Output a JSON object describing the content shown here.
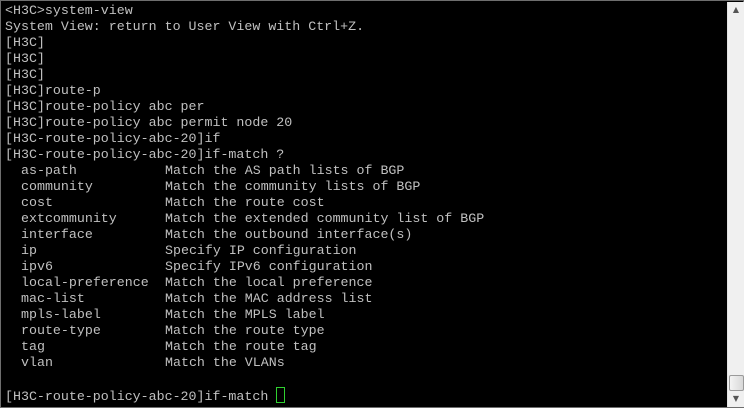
{
  "terminal": {
    "history": [
      "<H3C>system-view",
      "System View: return to User View with Ctrl+Z.",
      "[H3C]",
      "[H3C]",
      "[H3C]",
      "[H3C]route-p",
      "[H3C]route-policy abc per",
      "[H3C]route-policy abc permit node 20",
      "[H3C-route-policy-abc-20]if",
      "[H3C-route-policy-abc-20]if-match ?"
    ],
    "options": [
      {
        "name": "as-path",
        "desc": "Match the AS path lists of BGP"
      },
      {
        "name": "community",
        "desc": "Match the community lists of BGP"
      },
      {
        "name": "cost",
        "desc": "Match the route cost"
      },
      {
        "name": "extcommunity",
        "desc": "Match the extended community list of BGP"
      },
      {
        "name": "interface",
        "desc": "Match the outbound interface(s)"
      },
      {
        "name": "ip",
        "desc": "Specify IP configuration"
      },
      {
        "name": "ipv6",
        "desc": "Specify IPv6 configuration"
      },
      {
        "name": "local-preference",
        "desc": "Match the local preference"
      },
      {
        "name": "mac-list",
        "desc": "Match the MAC address list"
      },
      {
        "name": "mpls-label",
        "desc": "Match the MPLS label"
      },
      {
        "name": "route-type",
        "desc": "Match the route type"
      },
      {
        "name": "tag",
        "desc": "Match the route tag"
      },
      {
        "name": "vlan",
        "desc": "Match the VLANs"
      }
    ],
    "prompt": "[H3C-route-policy-abc-20]if-match ",
    "text_color": "#c0c0c0",
    "cursor_color": "#2fd12f",
    "background": "#000000"
  },
  "scrollbar": {
    "up_icon": "arrow-up-icon",
    "down_icon": "arrow-down-icon",
    "position_percent": 100
  }
}
